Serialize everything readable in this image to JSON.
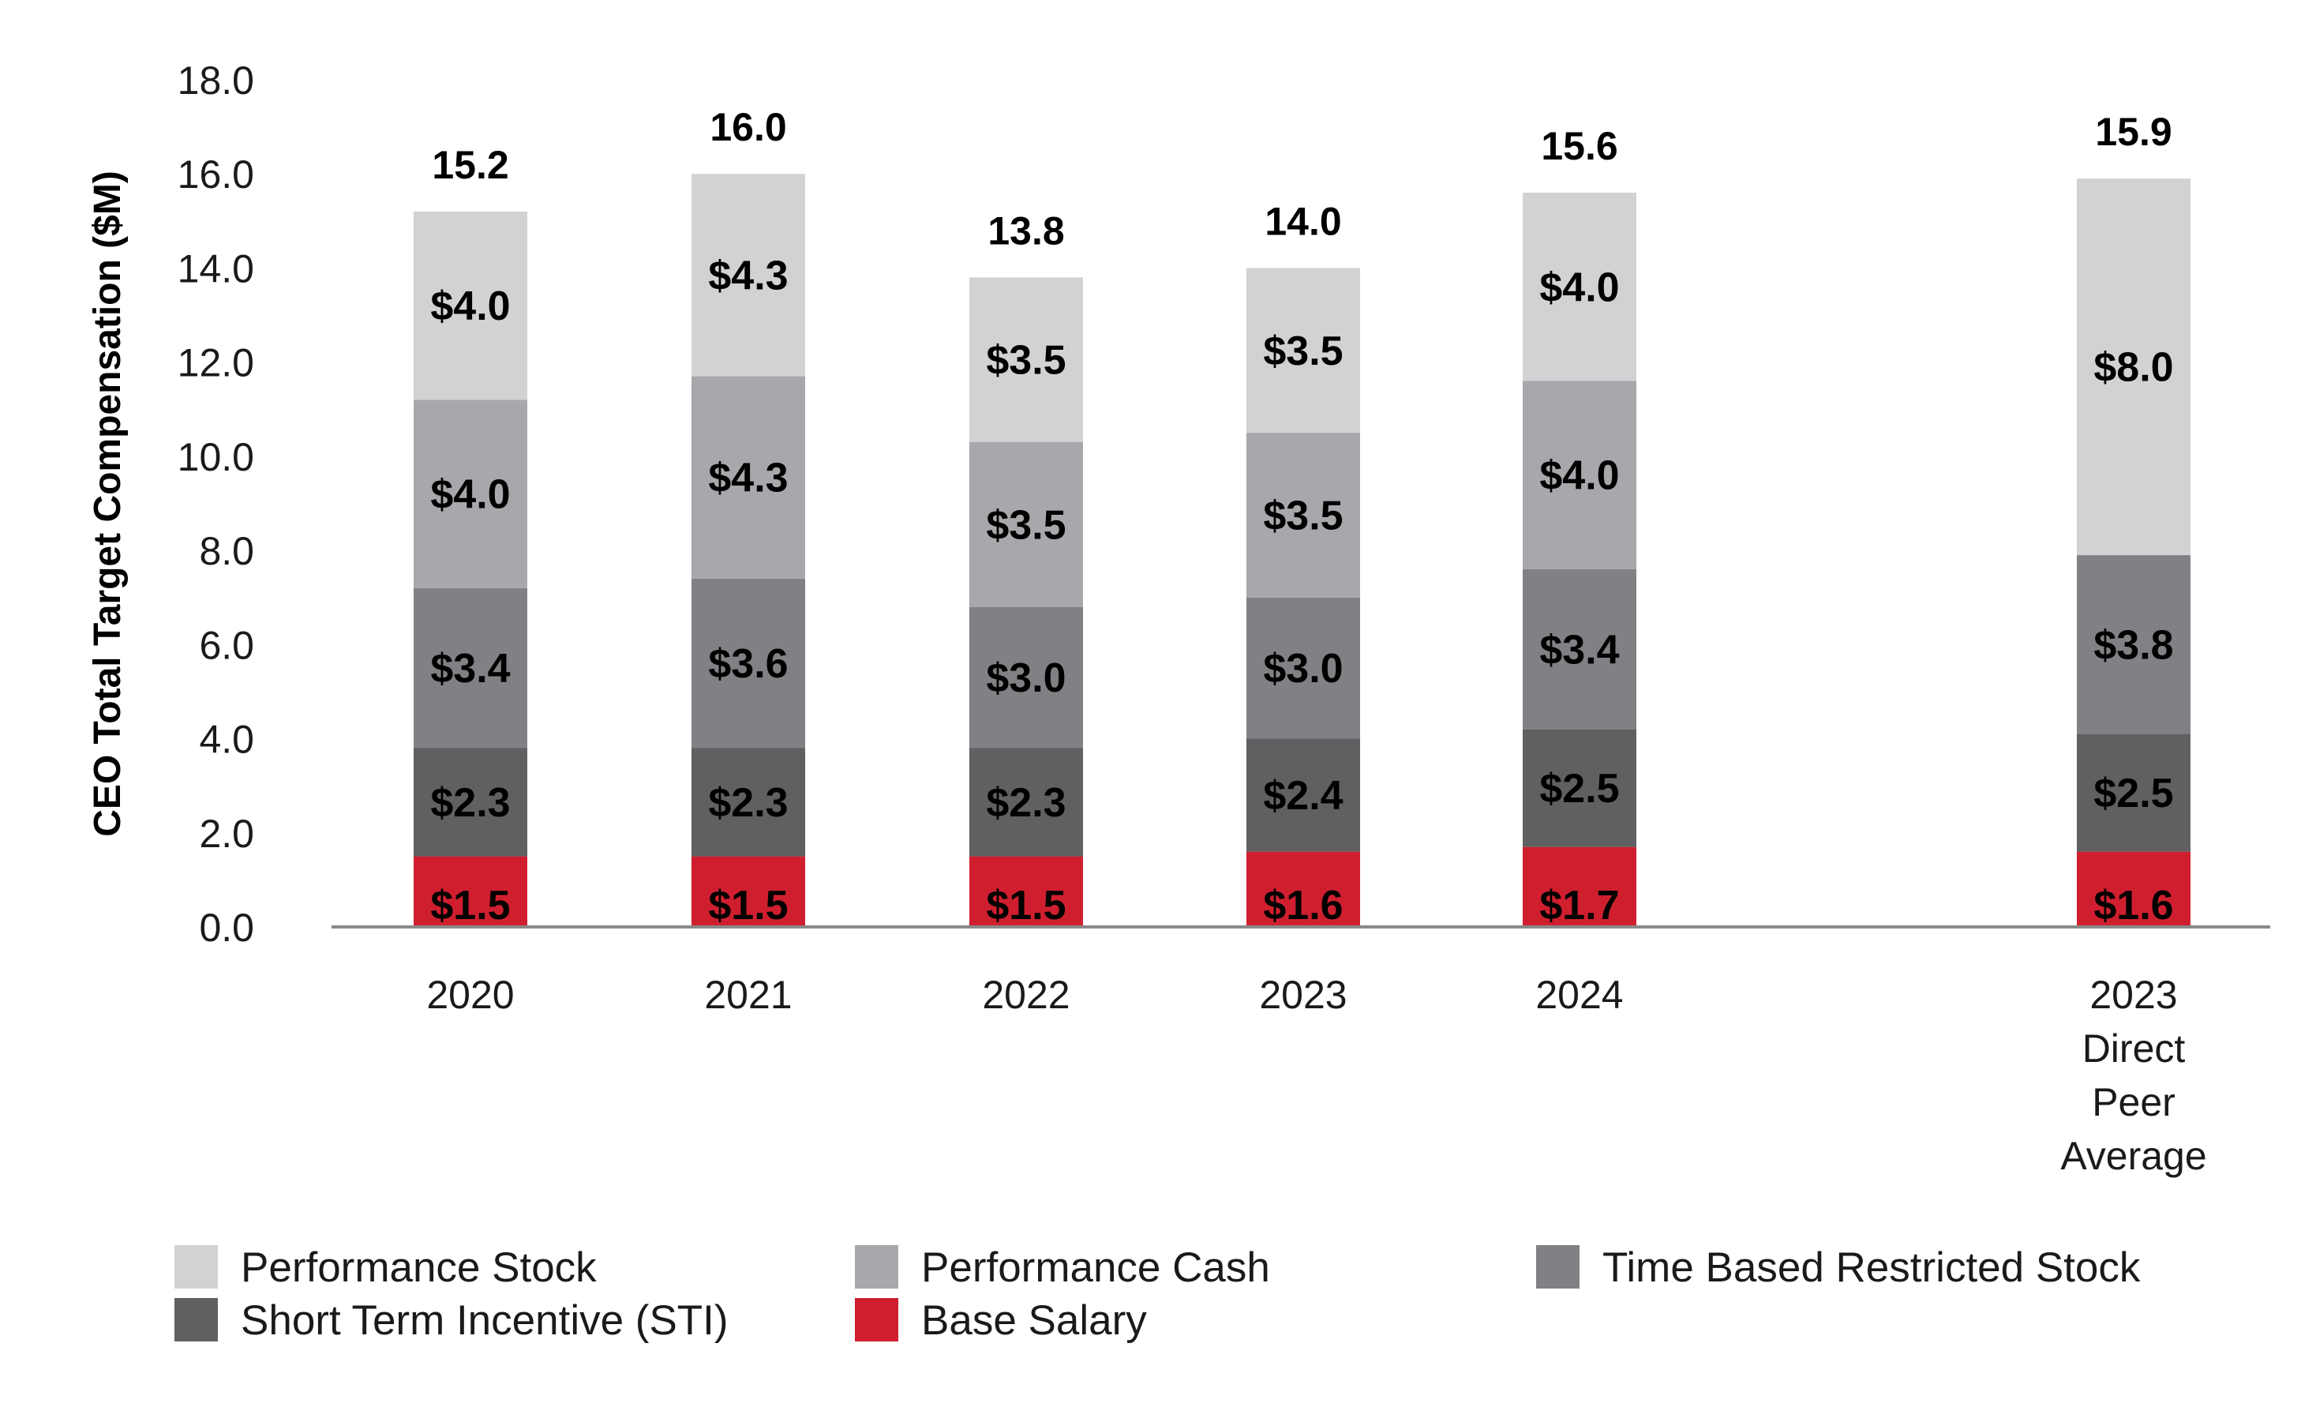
{
  "chart_data": {
    "type": "bar",
    "stacked": true,
    "title": "",
    "xlabel": "",
    "ylabel": "CEO Total Target Compensation ($M)",
    "ylim": [
      0,
      18
    ],
    "yticks": [
      "0.0",
      "2.0",
      "4.0",
      "6.0",
      "8.0",
      "10.0",
      "12.0",
      "14.0",
      "16.0",
      "18.0"
    ],
    "grid": false,
    "legend_position": "bottom",
    "categories": [
      [
        "2020"
      ],
      [
        "2021"
      ],
      [
        "2022"
      ],
      [
        "2023"
      ],
      [
        "2024"
      ],
      [
        "2023",
        "Direct",
        "Peer",
        "Average"
      ]
    ],
    "totals": [
      "15.2",
      "16.0",
      "13.8",
      "14.0",
      "15.6",
      "15.9"
    ],
    "series": [
      {
        "name": "Base Salary",
        "color": "#cf1f2f",
        "values": [
          1.5,
          1.5,
          1.5,
          1.6,
          1.7,
          1.6
        ],
        "labels": [
          "$1.5",
          "$1.5",
          "$1.5",
          "$1.6",
          "$1.7",
          "$1.6"
        ]
      },
      {
        "name": "Short Term Incentive (STI)",
        "color": "#5f6062",
        "values": [
          2.3,
          2.3,
          2.3,
          2.4,
          2.5,
          2.5
        ],
        "labels": [
          "$2.3",
          "$2.3",
          "$2.3",
          "$2.4",
          "$2.5",
          "$2.5"
        ]
      },
      {
        "name": "Time Based Restricted Stock",
        "color": "#808184",
        "values": [
          3.4,
          3.6,
          3.0,
          3.0,
          3.4,
          3.8
        ],
        "labels": [
          "$3.4",
          "$3.6",
          "$3.0",
          "$3.0",
          "$3.4",
          "$3.8"
        ]
      },
      {
        "name": "Performance Cash",
        "color": "#a7a8ab",
        "values": [
          4.0,
          4.3,
          3.5,
          3.5,
          4.0,
          0
        ],
        "labels": [
          "$4.0",
          "$4.3",
          "$3.5",
          "$3.5",
          "$4.0",
          ""
        ]
      },
      {
        "name": "Performance Stock",
        "color": "#d1d2d4",
        "values": [
          4.0,
          4.3,
          3.5,
          3.5,
          4.0,
          8.0
        ],
        "labels": [
          "$4.0",
          "$4.3",
          "$3.5",
          "$3.5",
          "$4.0",
          "$8.0"
        ]
      }
    ],
    "legend_order": [
      4,
      3,
      2,
      1,
      0
    ],
    "axis_color": "#8a8a8a"
  }
}
